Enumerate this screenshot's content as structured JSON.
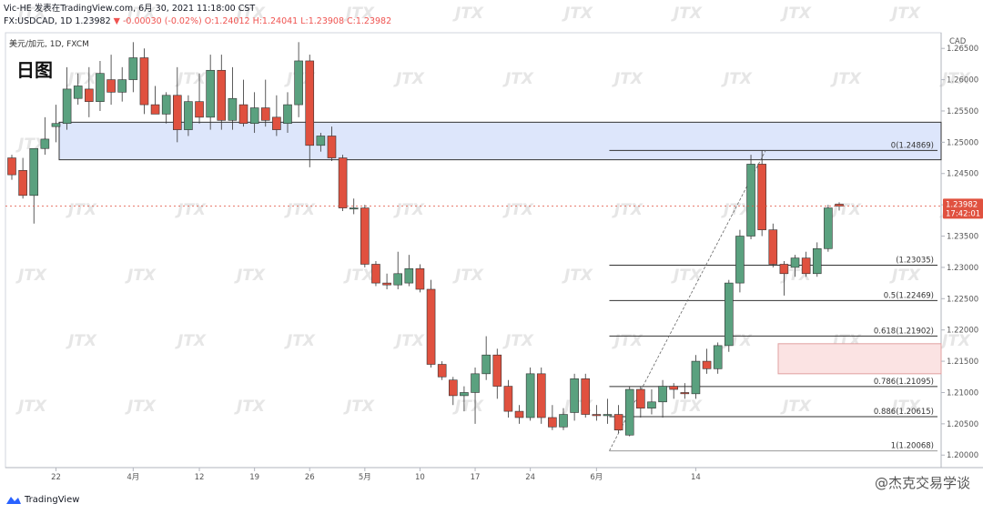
{
  "header": {
    "line1_prefix": "Vic-HE 发表在TradingView.com, 6月 30, 2021 11:18:00 CST",
    "line2_prefix": "FX:USDCAD, 1D 1.23982 ",
    "line2_change": "▼ -0.00030 (-0.02%)",
    "line2_ohlc": " O:1.24012 H:1.24041 L:1.23908 C:1.23982"
  },
  "chart_title": "日图",
  "symbol_label": "美元/加元, 1D, FXCM",
  "currency_label": "CAD",
  "price_tag": {
    "price": "1.23982",
    "countdown": "17:42:01"
  },
  "footer": {
    "brand": "TradingView",
    "watermark": "@杰克交易学谈"
  },
  "watermark_text": "JTX",
  "colors": {
    "up": "#5aa17f",
    "down": "#e0513f",
    "zone_blue": "#dde6fb",
    "zone_red": "#fbe3e3",
    "pricetag": "#e0513f"
  },
  "chart_data": {
    "type": "candlestick",
    "y_axis": {
      "min": 1.198,
      "max": 1.2675,
      "ticks": [
        "1.20000",
        "1.20500",
        "1.21000",
        "1.21500",
        "1.22000",
        "1.22500",
        "1.23000",
        "1.23500",
        "1.24000",
        "1.24500",
        "1.25000",
        "1.25500",
        "1.26000",
        "1.26500"
      ]
    },
    "x_labels": [
      {
        "label": "22",
        "index": 4
      },
      {
        "label": "4月",
        "index": 11
      },
      {
        "label": "12",
        "index": 17
      },
      {
        "label": "19",
        "index": 22
      },
      {
        "label": "26",
        "index": 27
      },
      {
        "label": "5月",
        "index": 32
      },
      {
        "label": "10",
        "index": 37
      },
      {
        "label": "17",
        "index": 42
      },
      {
        "label": "24",
        "index": 47
      },
      {
        "label": "6月",
        "index": 53
      },
      {
        "label": "14",
        "index": 62
      }
    ],
    "candles": [
      {
        "o": 1.2475,
        "h": 1.248,
        "l": 1.244,
        "c": 1.2448
      },
      {
        "o": 1.2455,
        "h": 1.2475,
        "l": 1.241,
        "c": 1.2415
      },
      {
        "o": 1.2415,
        "h": 1.249,
        "l": 1.237,
        "c": 1.249
      },
      {
        "o": 1.249,
        "h": 1.254,
        "l": 1.248,
        "c": 1.2505
      },
      {
        "o": 1.2525,
        "h": 1.256,
        "l": 1.25,
        "c": 1.253
      },
      {
        "o": 1.253,
        "h": 1.262,
        "l": 1.252,
        "c": 1.2585
      },
      {
        "o": 1.257,
        "h": 1.261,
        "l": 1.256,
        "c": 1.259
      },
      {
        "o": 1.2585,
        "h": 1.262,
        "l": 1.254,
        "c": 1.2565
      },
      {
        "o": 1.2565,
        "h": 1.263,
        "l": 1.255,
        "c": 1.261
      },
      {
        "o": 1.26,
        "h": 1.264,
        "l": 1.256,
        "c": 1.258
      },
      {
        "o": 1.258,
        "h": 1.262,
        "l": 1.2565,
        "c": 1.26
      },
      {
        "o": 1.26,
        "h": 1.266,
        "l": 1.258,
        "c": 1.2635
      },
      {
        "o": 1.2635,
        "h": 1.265,
        "l": 1.2545,
        "c": 1.256
      },
      {
        "o": 1.256,
        "h": 1.259,
        "l": 1.2545,
        "c": 1.2545
      },
      {
        "o": 1.2545,
        "h": 1.258,
        "l": 1.253,
        "c": 1.2575
      },
      {
        "o": 1.2575,
        "h": 1.262,
        "l": 1.25,
        "c": 1.252
      },
      {
        "o": 1.252,
        "h": 1.2575,
        "l": 1.251,
        "c": 1.2565
      },
      {
        "o": 1.2565,
        "h": 1.261,
        "l": 1.253,
        "c": 1.254
      },
      {
        "o": 1.254,
        "h": 1.264,
        "l": 1.252,
        "c": 1.2615
      },
      {
        "o": 1.2615,
        "h": 1.264,
        "l": 1.252,
        "c": 1.2535
      },
      {
        "o": 1.2535,
        "h": 1.262,
        "l": 1.252,
        "c": 1.257
      },
      {
        "o": 1.256,
        "h": 1.26,
        "l": 1.2525,
        "c": 1.253
      },
      {
        "o": 1.253,
        "h": 1.258,
        "l": 1.2515,
        "c": 1.2555
      },
      {
        "o": 1.2555,
        "h": 1.26,
        "l": 1.2525,
        "c": 1.2535
      },
      {
        "o": 1.254,
        "h": 1.2575,
        "l": 1.251,
        "c": 1.252
      },
      {
        "o": 1.253,
        "h": 1.258,
        "l": 1.2515,
        "c": 1.256
      },
      {
        "o": 1.256,
        "h": 1.266,
        "l": 1.254,
        "c": 1.263
      },
      {
        "o": 1.263,
        "h": 1.264,
        "l": 1.246,
        "c": 1.2495
      },
      {
        "o": 1.2495,
        "h": 1.2515,
        "l": 1.2485,
        "c": 1.251
      },
      {
        "o": 1.251,
        "h": 1.2525,
        "l": 1.247,
        "c": 1.2475
      },
      {
        "o": 1.2475,
        "h": 1.248,
        "l": 1.239,
        "c": 1.2395
      },
      {
        "o": 1.2395,
        "h": 1.241,
        "l": 1.2385,
        "c": 1.2395
      },
      {
        "o": 1.2395,
        "h": 1.24,
        "l": 1.23,
        "c": 1.2305
      },
      {
        "o": 1.2305,
        "h": 1.231,
        "l": 1.227,
        "c": 1.2275
      },
      {
        "o": 1.2275,
        "h": 1.229,
        "l": 1.2265,
        "c": 1.2272
      },
      {
        "o": 1.2272,
        "h": 1.2325,
        "l": 1.2265,
        "c": 1.229
      },
      {
        "o": 1.2275,
        "h": 1.232,
        "l": 1.227,
        "c": 1.2298
      },
      {
        "o": 1.2298,
        "h": 1.2305,
        "l": 1.226,
        "c": 1.2265
      },
      {
        "o": 1.2265,
        "h": 1.228,
        "l": 1.214,
        "c": 1.2145
      },
      {
        "o": 1.2145,
        "h": 1.215,
        "l": 1.212,
        "c": 1.2125
      },
      {
        "o": 1.212,
        "h": 1.2125,
        "l": 1.208,
        "c": 1.2095
      },
      {
        "o": 1.2095,
        "h": 1.211,
        "l": 1.207,
        "c": 1.21
      },
      {
        "o": 1.21,
        "h": 1.214,
        "l": 1.205,
        "c": 1.213
      },
      {
        "o": 1.213,
        "h": 1.219,
        "l": 1.212,
        "c": 1.216
      },
      {
        "o": 1.216,
        "h": 1.217,
        "l": 1.209,
        "c": 1.211
      },
      {
        "o": 1.211,
        "h": 1.212,
        "l": 1.206,
        "c": 1.207
      },
      {
        "o": 1.207,
        "h": 1.208,
        "l": 1.205,
        "c": 1.206
      },
      {
        "o": 1.206,
        "h": 1.214,
        "l": 1.2055,
        "c": 1.213
      },
      {
        "o": 1.213,
        "h": 1.214,
        "l": 1.205,
        "c": 1.206
      },
      {
        "o": 1.206,
        "h": 1.208,
        "l": 1.204,
        "c": 1.2045
      },
      {
        "o": 1.2045,
        "h": 1.2075,
        "l": 1.204,
        "c": 1.2065
      },
      {
        "o": 1.2068,
        "h": 1.213,
        "l": 1.2055,
        "c": 1.2122
      },
      {
        "o": 1.2122,
        "h": 1.213,
        "l": 1.206,
        "c": 1.2065
      },
      {
        "o": 1.2065,
        "h": 1.208,
        "l": 1.2055,
        "c": 1.2063
      },
      {
        "o": 1.2063,
        "h": 1.209,
        "l": 1.205,
        "c": 1.2065
      },
      {
        "o": 1.2065,
        "h": 1.208,
        "l": 1.2035,
        "c": 1.204
      },
      {
        "o": 1.2032,
        "h": 1.211,
        "l": 1.203,
        "c": 1.2105
      },
      {
        "o": 1.2105,
        "h": 1.211,
        "l": 1.206,
        "c": 1.2075
      },
      {
        "o": 1.2075,
        "h": 1.2105,
        "l": 1.2065,
        "c": 1.2085
      },
      {
        "o": 1.2085,
        "h": 1.212,
        "l": 1.206,
        "c": 1.211
      },
      {
        "o": 1.211,
        "h": 1.2115,
        "l": 1.209,
        "c": 1.2105
      },
      {
        "o": 1.21,
        "h": 1.2115,
        "l": 1.209,
        "c": 1.2098
      },
      {
        "o": 1.2098,
        "h": 1.216,
        "l": 1.209,
        "c": 1.215
      },
      {
        "o": 1.215,
        "h": 1.217,
        "l": 1.213,
        "c": 1.2138
      },
      {
        "o": 1.2138,
        "h": 1.218,
        "l": 1.213,
        "c": 1.2175
      },
      {
        "o": 1.2175,
        "h": 1.228,
        "l": 1.2165,
        "c": 1.2275
      },
      {
        "o": 1.2275,
        "h": 1.236,
        "l": 1.226,
        "c": 1.235
      },
      {
        "o": 1.235,
        "h": 1.248,
        "l": 1.2345,
        "c": 1.2465
      },
      {
        "o": 1.2465,
        "h": 1.2487,
        "l": 1.235,
        "c": 1.236
      },
      {
        "o": 1.236,
        "h": 1.237,
        "l": 1.23,
        "c": 1.2305
      },
      {
        "o": 1.2305,
        "h": 1.231,
        "l": 1.2255,
        "c": 1.229
      },
      {
        "o": 1.23,
        "h": 1.232,
        "l": 1.2285,
        "c": 1.2315
      },
      {
        "o": 1.2315,
        "h": 1.2325,
        "l": 1.2285,
        "c": 1.229
      },
      {
        "o": 1.229,
        "h": 1.234,
        "l": 1.2285,
        "c": 1.233
      },
      {
        "o": 1.233,
        "h": 1.24,
        "l": 1.2325,
        "c": 1.2395
      },
      {
        "o": 1.2401,
        "h": 1.2404,
        "l": 1.2391,
        "c": 1.2398
      }
    ],
    "zones": [
      {
        "name": "resistance-zone",
        "top": 1.2532,
        "bottom": 1.2472,
        "start_index": 4
      },
      {
        "name": "support-zone",
        "top": 1.2178,
        "bottom": 1.213,
        "start_index": 64
      }
    ],
    "fibonacci": {
      "start_index": 54,
      "levels": [
        {
          "ratio": "0",
          "price": 1.24869,
          "label": "0(1.24869)"
        },
        {
          "ratio": "0.382",
          "price": 1.23035,
          "label": "(1.23035)"
        },
        {
          "ratio": "0.5",
          "price": 1.22469,
          "label": "0.5(1.22469)"
        },
        {
          "ratio": "0.618",
          "price": 1.21902,
          "label": "0.618(1.21902)"
        },
        {
          "ratio": "0.786",
          "price": 1.21095,
          "label": "0.786(1.21095)"
        },
        {
          "ratio": "0.886",
          "price": 1.20615,
          "label": "0.886(1.20615)"
        },
        {
          "ratio": "1",
          "price": 1.20068,
          "label": "1(1.20068)"
        }
      ],
      "trend_from": {
        "index": 54,
        "price": 1.20068
      },
      "trend_to": {
        "index": 68,
        "price": 1.24869
      }
    },
    "current_price": 1.23982
  }
}
